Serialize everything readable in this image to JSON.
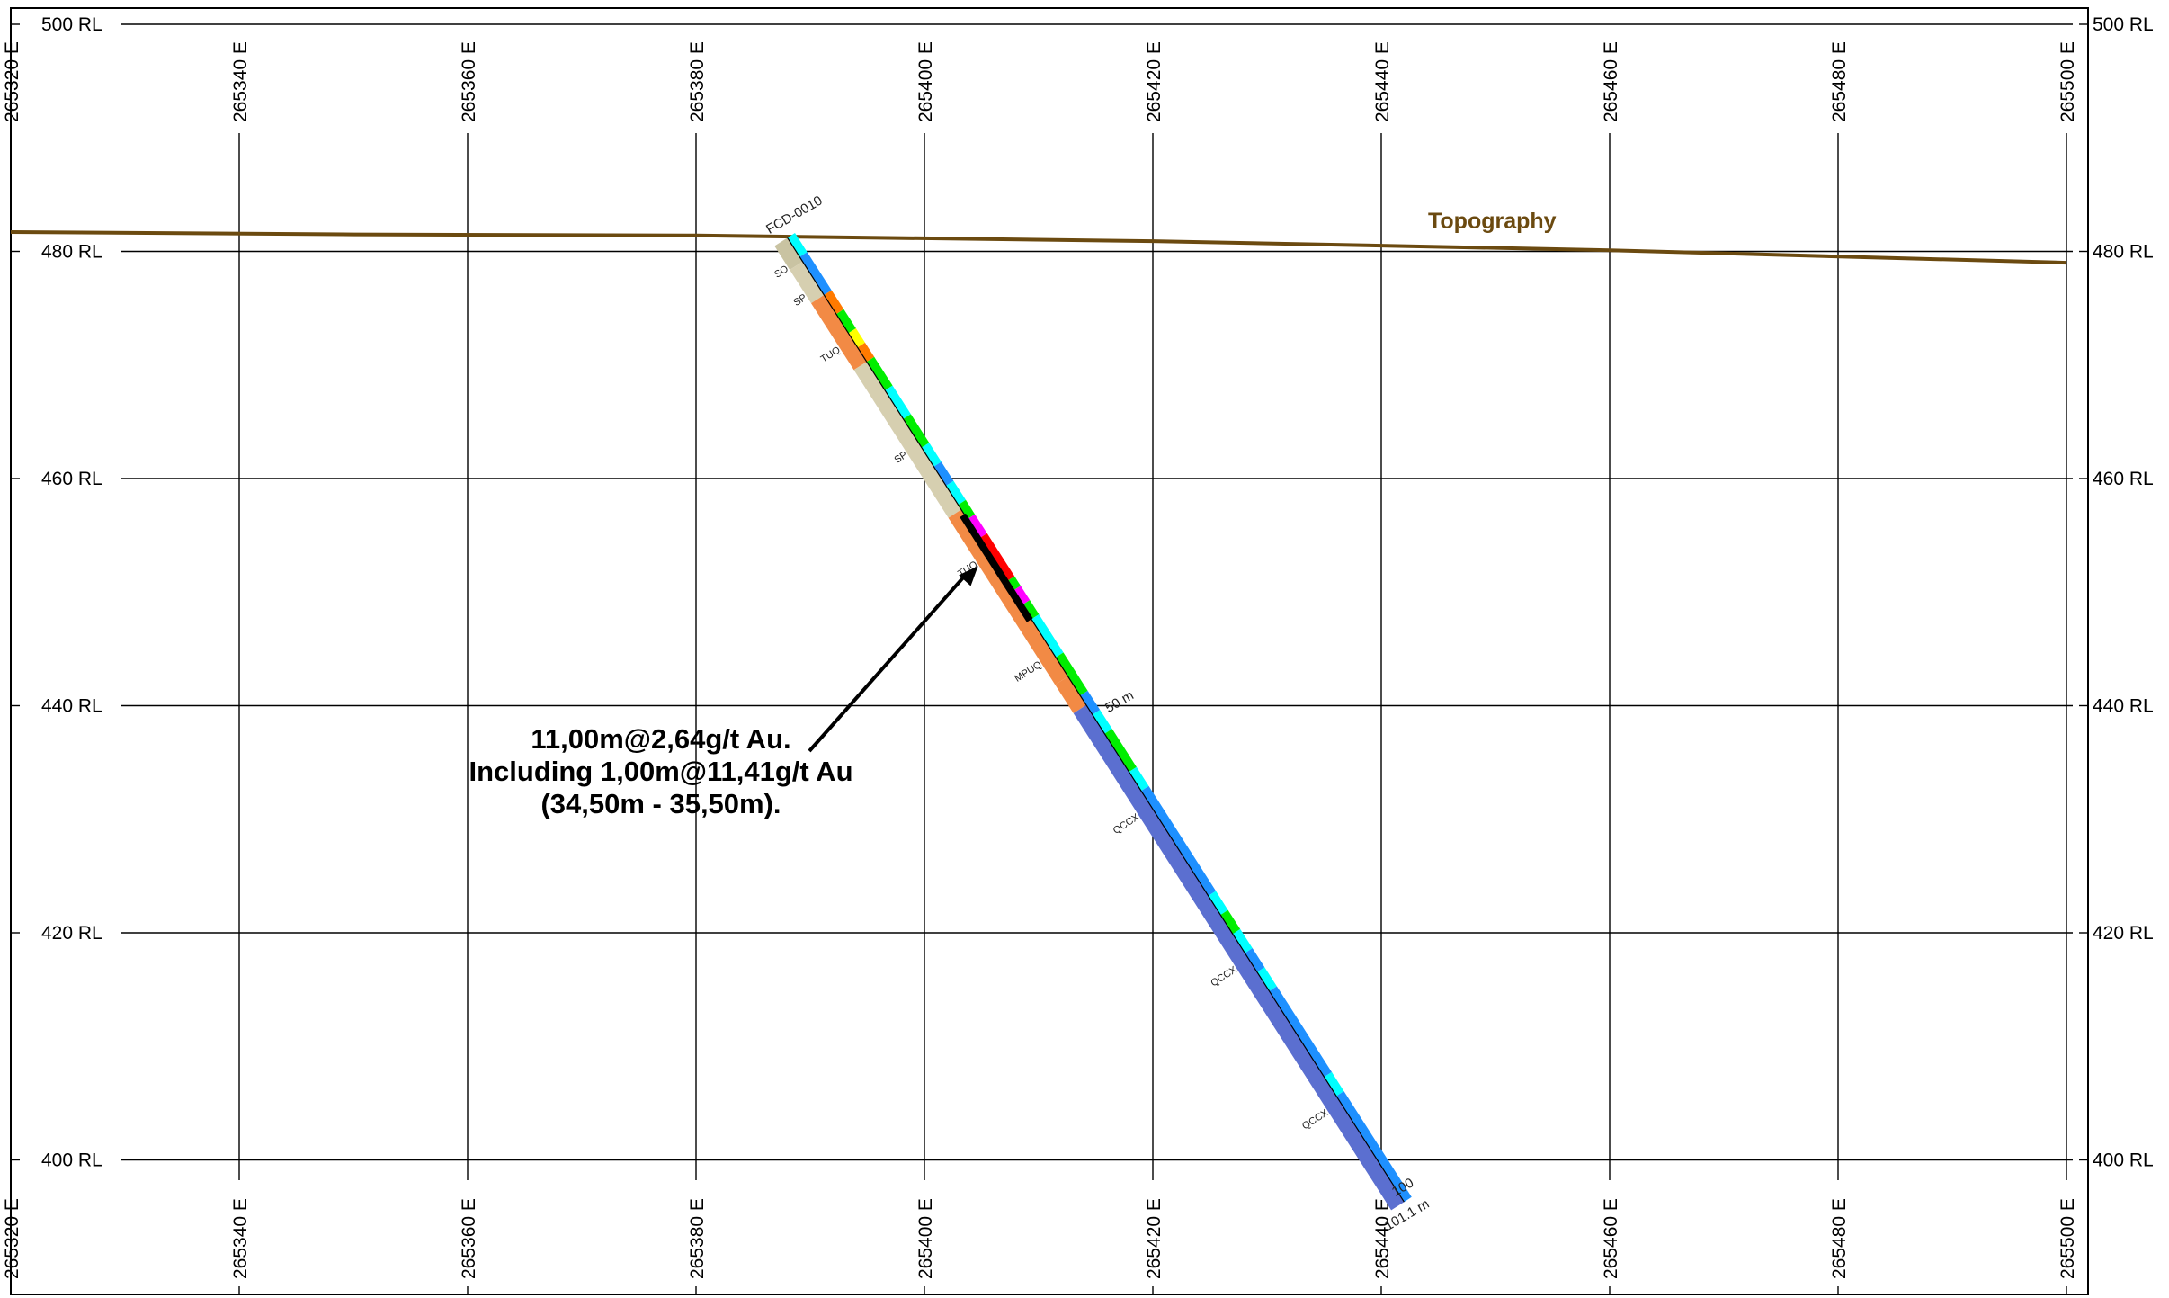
{
  "section": {
    "rl_labels": [
      {
        "value": 500,
        "text": "500 RL"
      },
      {
        "value": 480,
        "text": "480 RL"
      },
      {
        "value": 460,
        "text": "460 RL"
      },
      {
        "value": 440,
        "text": "440 RL"
      },
      {
        "value": 420,
        "text": "420 RL"
      },
      {
        "value": 400,
        "text": "400 RL"
      }
    ],
    "easting_labels": [
      {
        "value": 265320,
        "text": "265320 E"
      },
      {
        "value": 265340,
        "text": "265340 E"
      },
      {
        "value": 265360,
        "text": "265360 E"
      },
      {
        "value": 265380,
        "text": "265380 E"
      },
      {
        "value": 265400,
        "text": "265400 E"
      },
      {
        "value": 265420,
        "text": "265420 E"
      },
      {
        "value": 265440,
        "text": "265440 E"
      },
      {
        "value": 265460,
        "text": "265460 E"
      },
      {
        "value": 265480,
        "text": "265480 E"
      },
      {
        "value": 265500,
        "text": "265500 E"
      }
    ]
  },
  "topography": {
    "label": "Topography",
    "color": "#6b4a10",
    "profile": [
      [
        265320,
        481.7
      ],
      [
        265350,
        481.5
      ],
      [
        265380,
        481.4
      ],
      [
        265420,
        480.9
      ],
      [
        265460,
        480.1
      ],
      [
        265500,
        479.0
      ]
    ]
  },
  "drillhole": {
    "id": "FCD-0010",
    "collar": [
      265388,
      481.2
    ],
    "toe": [
      265442,
      396.3
    ],
    "depth_mark_50": "50 m",
    "depth_mark_100": "100",
    "end_label": "101.1 m",
    "lithology": [
      {
        "code": "SO",
        "from": 0,
        "to": 2.5,
        "color": "#c9c3a2"
      },
      {
        "code": "SP",
        "from": 2.5,
        "to": 6,
        "color": "#d6cfb0"
      },
      {
        "code": "TUQ",
        "from": 6,
        "to": 13,
        "color": "#f28a45"
      },
      {
        "code": "SP",
        "from": 13,
        "to": 28.5,
        "color": "#d6cfb0"
      },
      {
        "code": "TUQ",
        "from": 28.5,
        "to": 46,
        "color": "#f28a45"
      },
      {
        "code": "MPUQ",
        "from": 46,
        "to": 49,
        "color": "#f28a45"
      },
      {
        "code": "QCCX",
        "from": 49,
        "to": 101.1,
        "color": "#5b6fd0"
      }
    ],
    "lithology_labels": [
      {
        "code": "SO",
        "depth": 2.5
      },
      {
        "code": "SP",
        "depth": 5.5
      },
      {
        "code": "TUQ",
        "depth": 11
      },
      {
        "code": "SP",
        "depth": 22
      },
      {
        "code": "TUQ",
        "depth": 33.5
      },
      {
        "code": "MPUQ",
        "depth": 44
      },
      {
        "code": "QCCX",
        "depth": 60
      },
      {
        "code": "QCCX",
        "depth": 76
      },
      {
        "code": "QCCX",
        "depth": 91
      }
    ],
    "assays": [
      {
        "from": 0,
        "to": 2,
        "color": "#00ffff"
      },
      {
        "from": 2,
        "to": 6,
        "color": "#1e90ff"
      },
      {
        "from": 6,
        "to": 8,
        "color": "#ff7a00"
      },
      {
        "from": 8,
        "to": 10,
        "color": "#00ee00"
      },
      {
        "from": 10,
        "to": 11.5,
        "color": "#ffff00"
      },
      {
        "from": 11.5,
        "to": 13,
        "color": "#ff7a00"
      },
      {
        "from": 13,
        "to": 16,
        "color": "#00ee00"
      },
      {
        "from": 16,
        "to": 19,
        "color": "#00ffff"
      },
      {
        "from": 19,
        "to": 22,
        "color": "#00ee00"
      },
      {
        "from": 22,
        "to": 24,
        "color": "#00ffff"
      },
      {
        "from": 24,
        "to": 26,
        "color": "#1e90ff"
      },
      {
        "from": 26,
        "to": 28,
        "color": "#00ffff"
      },
      {
        "from": 28,
        "to": 29.5,
        "color": "#00ee00"
      },
      {
        "from": 29.5,
        "to": 31.5,
        "color": "#ff00ff"
      },
      {
        "from": 31.5,
        "to": 36,
        "color": "#ff0000"
      },
      {
        "from": 36,
        "to": 37,
        "color": "#00ee00"
      },
      {
        "from": 37,
        "to": 38.5,
        "color": "#ff00ff"
      },
      {
        "from": 38.5,
        "to": 40,
        "color": "#00ee00"
      },
      {
        "from": 40,
        "to": 44,
        "color": "#00ffff"
      },
      {
        "from": 44,
        "to": 48,
        "color": "#00ee00"
      },
      {
        "from": 48,
        "to": 50,
        "color": "#1e90ff"
      },
      {
        "from": 50,
        "to": 52,
        "color": "#00ffff"
      },
      {
        "from": 52,
        "to": 56,
        "color": "#00ee00"
      },
      {
        "from": 56,
        "to": 58,
        "color": "#00ffff"
      },
      {
        "from": 58,
        "to": 69,
        "color": "#1e90ff"
      },
      {
        "from": 69,
        "to": 71,
        "color": "#00ffff"
      },
      {
        "from": 71,
        "to": 73,
        "color": "#00ee00"
      },
      {
        "from": 73,
        "to": 75,
        "color": "#00ffff"
      },
      {
        "from": 75,
        "to": 77,
        "color": "#1e90ff"
      },
      {
        "from": 77,
        "to": 79,
        "color": "#00ffff"
      },
      {
        "from": 79,
        "to": 88,
        "color": "#1e90ff"
      },
      {
        "from": 88,
        "to": 90,
        "color": "#00ffff"
      },
      {
        "from": 90,
        "to": 101.1,
        "color": "#1e90ff"
      }
    ],
    "intercept": {
      "from": 29,
      "to": 40,
      "color": "#000000"
    }
  },
  "annotation": {
    "lines": [
      "11,00m@2,64g/t Au.",
      "Including 1,00m@11,41g/t Au",
      "(34,50m - 35,50m)."
    ],
    "arrow_target_depth": 33.5
  }
}
